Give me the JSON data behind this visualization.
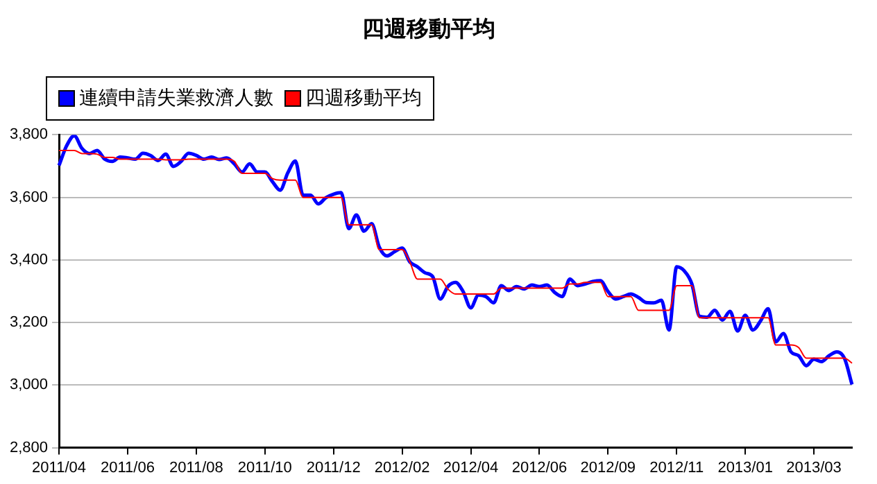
{
  "chart_data": {
    "type": "line",
    "title": "四週移動平均",
    "categories": [
      "2011/04",
      null,
      null,
      null,
      null,
      null,
      null,
      null,
      null,
      "2011/06",
      null,
      null,
      null,
      null,
      null,
      null,
      null,
      null,
      "2011/08",
      null,
      null,
      null,
      null,
      null,
      null,
      null,
      null,
      "2011/10",
      null,
      null,
      null,
      null,
      null,
      null,
      null,
      null,
      "2011/12",
      null,
      null,
      null,
      null,
      null,
      null,
      null,
      null,
      "2012/02",
      null,
      null,
      null,
      null,
      null,
      null,
      null,
      null,
      "2012/04",
      null,
      null,
      null,
      null,
      null,
      null,
      null,
      null,
      "2012/06",
      null,
      null,
      null,
      null,
      null,
      null,
      null,
      null,
      "2012/09",
      null,
      null,
      null,
      null,
      null,
      null,
      null,
      null,
      "2012/11",
      null,
      null,
      null,
      null,
      null,
      null,
      null,
      null,
      "2013/01",
      null,
      null,
      null,
      null,
      null,
      null,
      null,
      null,
      "2013/03",
      null,
      null,
      null,
      null,
      null
    ],
    "series": [
      {
        "name": "連續申請失業救濟人數",
        "color": "#0000ff",
        "values": [
          3702,
          3765,
          3797,
          3757,
          3740,
          3750,
          3722,
          3715,
          3729,
          3726,
          3722,
          3741,
          3734,
          3718,
          3738,
          3699,
          3715,
          3741,
          3734,
          3722,
          3729,
          3721,
          3726,
          3707,
          3681,
          3707,
          3681,
          3681,
          3650,
          3623,
          3678,
          3716,
          3607,
          3607,
          3579,
          3599,
          3610,
          3615,
          3500,
          3544,
          3492,
          3516,
          3441,
          3413,
          3426,
          3438,
          3394,
          3378,
          3359,
          3347,
          3275,
          3315,
          3328,
          3299,
          3247,
          3288,
          3283,
          3263,
          3318,
          3302,
          3315,
          3307,
          3320,
          3315,
          3320,
          3296,
          3283,
          3339,
          3318,
          3323,
          3331,
          3334,
          3299,
          3275,
          3283,
          3291,
          3280,
          3264,
          3263,
          3271,
          3176,
          3378,
          3365,
          3323,
          3220,
          3217,
          3239,
          3208,
          3236,
          3173,
          3223,
          3176,
          3205,
          3244,
          3138,
          3165,
          3106,
          3094,
          3062,
          3083,
          3075,
          3094,
          3106,
          3086,
          3002
        ]
      },
      {
        "name": "四週移動平均",
        "color": "#ff0000",
        "values": [
          3750,
          3750,
          3750,
          3740,
          3740,
          3738,
          3728,
          3728,
          3722,
          3722,
          3722,
          3722,
          3722,
          3722,
          3720,
          3720,
          3720,
          3722,
          3722,
          3722,
          3722,
          3722,
          3722,
          3715,
          3677,
          3677,
          3677,
          3677,
          3660,
          3655,
          3655,
          3655,
          3600,
          3600,
          3600,
          3600,
          3600,
          3600,
          3512,
          3512,
          3512,
          3512,
          3433,
          3433,
          3433,
          3433,
          3394,
          3339,
          3339,
          3339,
          3339,
          3307,
          3291,
          3291,
          3291,
          3291,
          3291,
          3291,
          3310,
          3310,
          3310,
          3310,
          3310,
          3310,
          3310,
          3310,
          3310,
          3323,
          3323,
          3328,
          3328,
          3328,
          3283,
          3283,
          3283,
          3283,
          3239,
          3239,
          3239,
          3239,
          3239,
          3318,
          3318,
          3318,
          3215,
          3215,
          3215,
          3215,
          3215,
          3215,
          3215,
          3215,
          3215,
          3215,
          3128,
          3128,
          3128,
          3120,
          3086,
          3086,
          3086,
          3086,
          3086,
          3086,
          3070
        ]
      }
    ],
    "ylim": [
      2800,
      3800
    ],
    "yticks": [
      {
        "value": 2800,
        "label": "2,800"
      },
      {
        "value": 3000,
        "label": "3,000"
      },
      {
        "value": 3200,
        "label": "3,200"
      },
      {
        "value": 3400,
        "label": "3,400"
      },
      {
        "value": 3600,
        "label": "3,600"
      },
      {
        "value": 3800,
        "label": "3,800"
      }
    ],
    "grid": "y",
    "legend": "top left",
    "marker": "none",
    "line_style": "solid"
  }
}
